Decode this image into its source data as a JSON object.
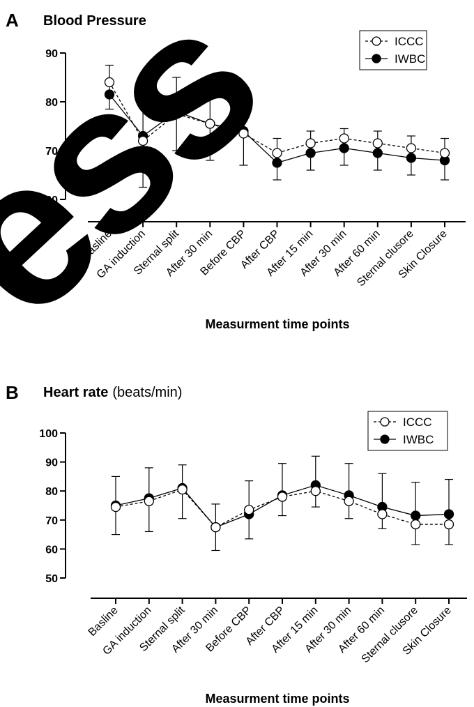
{
  "watermark": {
    "text": "ess"
  },
  "chart_data": [
    {
      "panel_letter": "A",
      "title": "Blood Pressure",
      "subtitle": "",
      "type": "line",
      "xlabel": "Measurment time points",
      "ylabel": "",
      "categories": [
        "Basline",
        "GA induction",
        "Sternal split",
        "After 30 min",
        "Before CBP",
        "After CBP",
        "After 15 min",
        "After 30 min",
        "After 60 min",
        "Sternal clusore",
        "Skin Closure"
      ],
      "ylim": [
        60,
        90
      ],
      "yticks": [
        60,
        70,
        80,
        90
      ],
      "grid": false,
      "legend_position": "top-right",
      "series": [
        {
          "name": "ICCC",
          "marker": "open-circle",
          "line_style": "dashed",
          "values": [
            84,
            72,
            77.5,
            75.5,
            73.5,
            69.5,
            71.5,
            72.5,
            71.5,
            70.5,
            69.5
          ],
          "error_upper": [
            87.5,
            81.5,
            85,
            82.5,
            80.5,
            72.5,
            74,
            74.5,
            74,
            73,
            72.5
          ],
          "error_lower": [
            78.5,
            62.5,
            70,
            68,
            67,
            64,
            66,
            67,
            66,
            65,
            64
          ]
        },
        {
          "name": "IWBC",
          "marker": "filled-circle",
          "line_style": "solid",
          "values": [
            81.5,
            73,
            78,
            75.5,
            74,
            67.5,
            69.5,
            70.5,
            69.5,
            68.5,
            68
          ],
          "error_upper": [],
          "error_lower": []
        }
      ]
    },
    {
      "panel_letter": "B",
      "title": "Heart rate",
      "subtitle": "(beats/min)",
      "type": "line",
      "xlabel": "Measurment time points",
      "ylabel": "",
      "categories": [
        "Basline",
        "GA induction",
        "Sternal split",
        "After 30 min",
        "Before CBP",
        "After CBP",
        "After 15 min",
        "After 30 min",
        "After 60 min",
        "Sternal clusore",
        "Skin Closure"
      ],
      "ylim": [
        50,
        100
      ],
      "yticks": [
        50,
        60,
        70,
        80,
        90,
        100
      ],
      "grid": false,
      "legend_position": "top-right",
      "series": [
        {
          "name": "ICCC",
          "marker": "open-circle",
          "line_style": "dashed",
          "values": [
            74.5,
            76.5,
            80.5,
            67.5,
            73.5,
            78,
            80,
            76.5,
            72,
            68.5,
            68.5
          ],
          "error_upper": [
            85,
            88,
            89,
            75.5,
            83.5,
            89.5,
            92,
            89.5,
            86,
            83,
            84
          ],
          "error_lower": [
            65,
            66,
            70.5,
            59.5,
            63.5,
            71.5,
            74.5,
            70.5,
            67,
            61.5,
            61.5
          ]
        },
        {
          "name": "IWBC",
          "marker": "filled-circle",
          "line_style": "solid",
          "values": [
            75,
            77.5,
            81,
            67.5,
            72,
            78.5,
            82,
            78.5,
            74.5,
            71.5,
            72
          ],
          "error_upper": [],
          "error_lower": []
        }
      ]
    }
  ]
}
